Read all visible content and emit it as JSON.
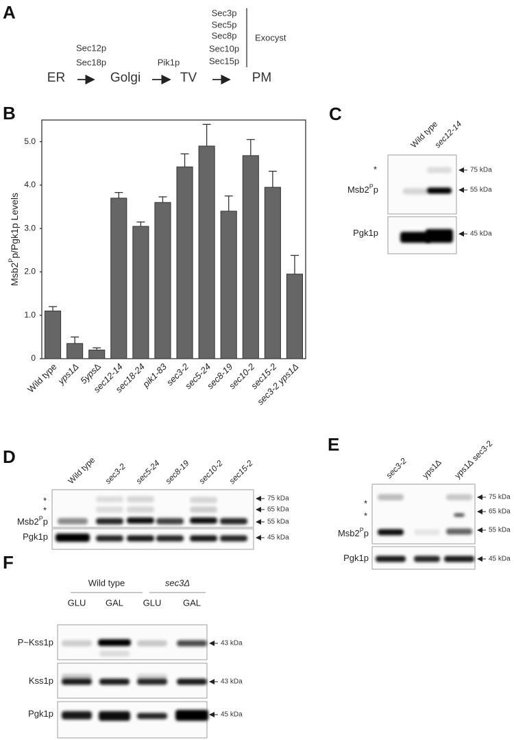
{
  "diagram": {
    "panel_label": "A",
    "nodes": [
      "ER",
      "Golgi",
      "TV",
      "PM"
    ],
    "steps": [
      [
        "Sec12p",
        "Sec18p"
      ],
      [
        "Pik1p"
      ],
      [
        "Sec3p",
        "Sec5p",
        "Sec8p",
        "Sec10p",
        "Sec15p"
      ]
    ],
    "bracket_label": "Exocyst"
  },
  "chart_data": {
    "panel_label": "B",
    "type": "bar",
    "ylabel": [
      "Msb2",
      "P",
      "p/Pgk1p Levels"
    ],
    "categories": [
      "Wild type",
      "yps1Δ",
      "5yps∆",
      "sec12-14",
      "sec18-24",
      "pik1-83",
      "sec3-2",
      "sec5-24",
      "sec8-19",
      "sec10-2",
      "sec15-2",
      "sec3-2 yps1Δ"
    ],
    "values": [
      1.1,
      0.35,
      0.2,
      3.7,
      3.05,
      3.6,
      4.42,
      4.9,
      3.4,
      4.68,
      3.95,
      1.95
    ],
    "errors": [
      0.1,
      0.15,
      0.05,
      0.13,
      0.1,
      0.13,
      0.3,
      0.5,
      0.35,
      0.37,
      0.37,
      0.43
    ],
    "color": "#666666",
    "ylim": [
      0,
      5.5
    ],
    "yticks": [
      0,
      {
        "value": 1,
        "label": "1.0"
      },
      {
        "value": 2,
        "label": "2.0"
      },
      {
        "value": 3,
        "label": "3.0"
      },
      {
        "value": 4,
        "label": "4.0"
      },
      {
        "value": 5,
        "label": "5.0"
      }
    ]
  },
  "blots": [
    {
      "panel_label": "C",
      "lanes": [
        "Wild type",
        "sec12-14"
      ],
      "rows": [
        {
          "label": [
            "Msb2",
            "P",
            "p"
          ],
          "stars": [
            "*"
          ],
          "markers": [
            "75 kDa",
            "55 kDa"
          ]
        },
        {
          "label": [
            "Pgk1p"
          ],
          "markers": [
            "45 kDa"
          ]
        }
      ]
    },
    {
      "panel_label": "D",
      "lanes": [
        "Wild type",
        "sec3-2",
        "sec5-24",
        "sec8-19",
        "sec10-2",
        "sec15-2"
      ],
      "rows": [
        {
          "label": [
            "Msb2",
            "P",
            "p"
          ],
          "stars": [
            "*",
            "*"
          ],
          "markers": [
            "75 kDa",
            "65 kDa",
            "55 kDa"
          ]
        },
        {
          "label": [
            "Pgk1p"
          ],
          "markers": [
            "45 kDa"
          ]
        }
      ]
    },
    {
      "panel_label": "E",
      "lanes": [
        "sec3-2",
        "yps1∆",
        "yps1∆ sec3-2"
      ],
      "rows": [
        {
          "label": [
            "Msb2",
            "P",
            "p"
          ],
          "stars": [
            "*",
            "*"
          ],
          "markers": [
            "75 kDa",
            "65 kDa",
            "55 kDa"
          ]
        },
        {
          "label": [
            "Pgk1p"
          ],
          "markers": [
            "45 kDa"
          ]
        }
      ]
    },
    {
      "panel_label": "F",
      "lane_groups": [
        "Wild type",
        "sec3Δ"
      ],
      "lanes": [
        "GLU",
        "GAL",
        "GLU",
        "GAL"
      ],
      "rows": [
        {
          "label": [
            "P~Kss1p"
          ],
          "markers": [
            "43 kDa"
          ]
        },
        {
          "label": [
            "Kss1p"
          ],
          "markers": [
            "43 kDa"
          ]
        },
        {
          "label": [
            "Pgk1p"
          ],
          "markers": [
            "45 kDa"
          ]
        }
      ]
    }
  ]
}
